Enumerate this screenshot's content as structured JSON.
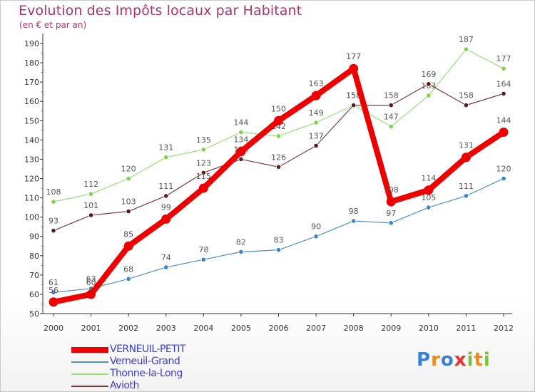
{
  "header": {
    "title": "Evolution des Impôts locaux par Habitant",
    "subtitle": "(en € et par an)"
  },
  "logo": {
    "text": "Proxiti"
  },
  "chart_data": {
    "type": "line",
    "title": "Evolution des Impôts locaux par Habitant",
    "subtitle": "(en € et par an)",
    "xlabel": "",
    "ylabel": "",
    "ylim": [
      50,
      190
    ],
    "yticks": [
      50,
      60,
      70,
      80,
      90,
      100,
      110,
      120,
      130,
      140,
      150,
      160,
      170,
      180,
      190
    ],
    "grid": false,
    "legend_position": "bottom-left",
    "categories": [
      "2000",
      "2001",
      "2002",
      "2003",
      "2004",
      "2005",
      "2006",
      "2007",
      "2008",
      "2009",
      "2010",
      "2011",
      "2012"
    ],
    "series": [
      {
        "name": "Verneuil-Grand",
        "color": "#4e8fc2",
        "marker": "#3a85c6",
        "width": 1.2,
        "labelColor": "#555555",
        "values": [
          61,
          63,
          68,
          74,
          78,
          82,
          83,
          90,
          98,
          97,
          105,
          111,
          120
        ]
      },
      {
        "name": "Thonne-la-Long",
        "color": "#99de7a",
        "marker": "#7ed34a",
        "width": 1.2,
        "labelColor": "#555555",
        "values": [
          108,
          112,
          120,
          131,
          135,
          144,
          142,
          149,
          158,
          147,
          163,
          187,
          177
        ]
      },
      {
        "name": "Avioth",
        "color": "#7b3a3a",
        "marker": "#5b1c1c",
        "width": 1.2,
        "labelColor": "#555555",
        "values": [
          93,
          101,
          103,
          111,
          123,
          130,
          126,
          137,
          158,
          158,
          169,
          158,
          164
        ]
      },
      {
        "name": "VERNEUIL-PETIT",
        "color": "#ee0000",
        "marker": "#ee0000",
        "width": 8,
        "labelColor": "#444444",
        "values": [
          56,
          60,
          85,
          99,
          115,
          134,
          150,
          163,
          177,
          108,
          114,
          131,
          144
        ]
      }
    ]
  },
  "legend": {
    "items": [
      {
        "label": "VERNEUIL-PETIT",
        "color": "#ee0000",
        "textColor": "#3b3bd9"
      },
      {
        "label": "Verneuil-Grand",
        "color": "#4e8fc2",
        "textColor": "#3b3bd9"
      },
      {
        "label": "Thonne-la-Long",
        "color": "#99de7a",
        "textColor": "#3b3bd9"
      },
      {
        "label": "Avioth",
        "color": "#7b3a3a",
        "textColor": "#3b3bd9"
      }
    ]
  }
}
